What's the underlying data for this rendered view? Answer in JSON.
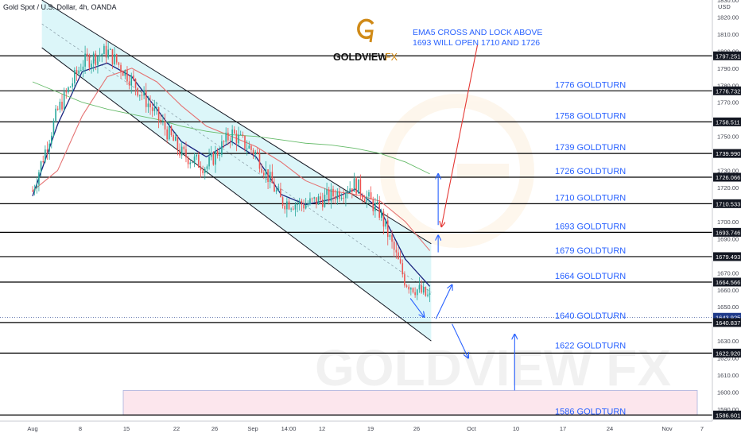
{
  "header": {
    "title": "Gold Spot / U.S. Dollar, 4h, OANDA",
    "currency": "USD"
  },
  "brand": {
    "logo_text": "GOLDVIEW",
    "logo_suffix": "FX",
    "watermark": "GOLDVIEW FX"
  },
  "colors": {
    "level_line": "#000000",
    "label_blue": "#2962ff",
    "candle_up": "#26a69a",
    "candle_down": "#ef5350",
    "ema_blue": "#1a237e",
    "ema_red": "#e57373",
    "ema_green": "#66bb6a",
    "channel_fill": "#b2ebf2",
    "zone_fill": "#fce4ec",
    "price_tag": "#131722",
    "current_tag": "#1e3a8a",
    "arrow_red": "#e53935",
    "logo_gold": "#d08a17"
  },
  "annotation": {
    "line1": "EMA5 CROSS AND LOCK ABOVE",
    "line2": "1693 WILL OPEN 1710 AND 1726"
  },
  "chart_data": {
    "type": "candlestick",
    "interval": "4h",
    "symbol": "Gold Spot / U.S. Dollar",
    "ylim": [
      1583,
      1830
    ],
    "y_ticks": [
      1590,
      1600,
      1610,
      1620,
      1630,
      1650,
      1660,
      1670,
      1680,
      1690,
      1700,
      1710,
      1720,
      1730,
      1740,
      1750,
      1760,
      1770,
      1780,
      1790,
      1800,
      1810,
      1820,
      1830
    ],
    "x_ticks": [
      "Aug",
      "8",
      "15",
      "22",
      "26",
      "Sep",
      "14:00",
      "12",
      "19",
      "26",
      "Oct",
      "10",
      "17",
      "24",
      "Nov",
      "7"
    ],
    "price_tags": [
      "1797.251",
      "1776.732",
      "1758.511",
      "1739.990",
      "1726.066",
      "1710.533",
      "1693.746",
      "1679.493",
      "1664.566",
      "1643.925",
      "1640.837",
      "1622.920",
      "1586.601"
    ],
    "current_price": "1643.925",
    "levels": [
      {
        "value": 1797.251,
        "label": ""
      },
      {
        "value": 1776.732,
        "label": "1776 GOLDTURN"
      },
      {
        "value": 1758.511,
        "label": "1758 GOLDTURN"
      },
      {
        "value": 1739.99,
        "label": "1739 GOLDTURN"
      },
      {
        "value": 1726.066,
        "label": "1726 GOLDTURN"
      },
      {
        "value": 1710.533,
        "label": "1710 GOLDTURN"
      },
      {
        "value": 1693.746,
        "label": "1693 GOLDTURN"
      },
      {
        "value": 1679.493,
        "label": "1679 GOLDTURN"
      },
      {
        "value": 1664.566,
        "label": "1664 GOLDTURN"
      },
      {
        "value": 1640.837,
        "label": "1640 GOLDTURN"
      },
      {
        "value": 1622.92,
        "label": "1622 GOLDTURN"
      },
      {
        "value": 1586.601,
        "label": "1586 GOLDTURN"
      }
    ],
    "zone": {
      "from": 1586.601,
      "to": 1601
    },
    "channel": {
      "upper": [
        [
          0.2,
          1830
        ],
        [
          8.6,
          1687
        ]
      ],
      "lower": [
        [
          0.2,
          1802
        ],
        [
          8.6,
          1630
        ]
      ]
    },
    "series": [
      {
        "kind": "ohlc",
        "x": [
          0.0,
          0.54,
          1.07,
          1.61,
          2.14,
          2.68,
          3.21,
          3.75,
          4.29,
          4.82,
          5.36,
          5.89,
          6.43,
          6.96,
          7.5,
          8.04,
          8.57
        ],
        "y": [
          1718,
          1765,
          1793,
          1800,
          1783,
          1762,
          1740,
          1732,
          1752,
          1740,
          1712,
          1710,
          1715,
          1722,
          1705,
          1665,
          1655
        ]
      },
      {
        "kind": "ema",
        "x": [
          0.0,
          0.54,
          1.07,
          1.61,
          2.14,
          2.68,
          3.21,
          3.75,
          4.29,
          4.82,
          5.36,
          5.89,
          6.43,
          6.96,
          7.5,
          8.04,
          8.57
        ],
        "y": [
          1715,
          1757,
          1788,
          1793,
          1785,
          1766,
          1747,
          1738,
          1747,
          1738,
          1716,
          1710,
          1713,
          1719,
          1707,
          1678,
          1662
        ]
      },
      {
        "kind": "ema",
        "x": [
          0.0,
          0.54,
          1.07,
          1.61,
          2.14,
          2.68,
          3.21,
          3.75,
          4.29,
          4.82,
          5.36,
          5.89,
          6.43,
          6.96,
          7.5,
          8.04,
          8.57
        ],
        "y": [
          1718,
          1730,
          1762,
          1785,
          1790,
          1782,
          1768,
          1756,
          1750,
          1744,
          1735,
          1724,
          1718,
          1716,
          1712,
          1700,
          1683
        ]
      },
      {
        "kind": "ema",
        "x": [
          0.0,
          0.54,
          1.07,
          1.61,
          2.14,
          2.68,
          3.21,
          3.75,
          4.29,
          4.82,
          5.36,
          5.89,
          6.43,
          6.96,
          7.5,
          8.04,
          8.57
        ],
        "y": [
          1782,
          1776,
          1770,
          1766,
          1763,
          1760,
          1756,
          1753,
          1751,
          1750,
          1748,
          1746,
          1745,
          1743,
          1740,
          1735,
          1728
        ]
      }
    ],
    "arrows": [
      {
        "color": "blue",
        "from": [
          8.15,
          1655
        ],
        "to": [
          8.45,
          1644
        ]
      },
      {
        "color": "blue",
        "from": [
          8.7,
          1643
        ],
        "to": [
          9.05,
          1663
        ]
      },
      {
        "color": "blue",
        "from": [
          9.05,
          1640
        ],
        "to": [
          9.4,
          1620
        ]
      },
      {
        "color": "blue",
        "from": [
          8.75,
          1682
        ],
        "to": [
          8.75,
          1692
        ]
      },
      {
        "color": "blue",
        "from": [
          8.75,
          1698
        ],
        "to": [
          8.75,
          1728
        ]
      },
      {
        "color": "blue",
        "from": [
          10.4,
          1601
        ],
        "to": [
          10.4,
          1634
        ]
      },
      {
        "color": "red",
        "from": [
          9.6,
          1804
        ],
        "to": [
          8.82,
          1697
        ]
      }
    ]
  }
}
